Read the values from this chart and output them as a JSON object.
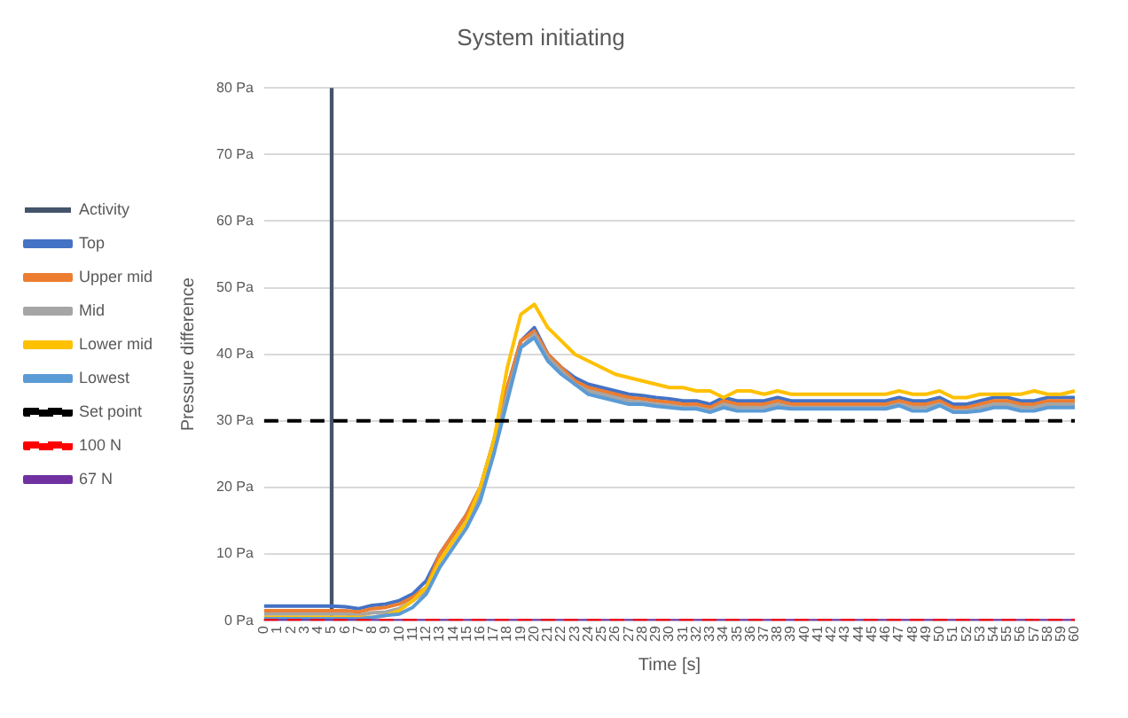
{
  "chart_data": {
    "type": "line",
    "title": "System initiating",
    "xlabel": "Time [s]",
    "ylabel": "Pressure difference",
    "categories": [
      "0",
      "1",
      "2",
      "3",
      "4",
      "5",
      "6",
      "7",
      "8",
      "9",
      "10",
      "11",
      "12",
      "13",
      "14",
      "15",
      "16",
      "17",
      "18",
      "19",
      "20",
      "21",
      "22",
      "23",
      "24",
      "25",
      "26",
      "27",
      "28",
      "29",
      "30",
      "31",
      "32",
      "33",
      "34",
      "35",
      "36",
      "37",
      "38",
      "39",
      "40",
      "41",
      "42",
      "43",
      "44",
      "45",
      "46",
      "47",
      "48",
      "49",
      "50",
      "51",
      "52",
      "53",
      "54",
      "55",
      "56",
      "57",
      "58",
      "59",
      "60"
    ],
    "ylim": [
      0,
      80
    ],
    "yticks": [
      {
        "value": 0,
        "label": "0 Pa"
      },
      {
        "value": 10,
        "label": "10 Pa"
      },
      {
        "value": 20,
        "label": "20 Pa"
      },
      {
        "value": 30,
        "label": "30 Pa"
      },
      {
        "value": 40,
        "label": "40 Pa"
      },
      {
        "value": 50,
        "label": "50 Pa"
      },
      {
        "value": 60,
        "label": "60 Pa"
      },
      {
        "value": 70,
        "label": "70 Pa"
      },
      {
        "value": 80,
        "label": "80 Pa"
      }
    ],
    "grid": "y",
    "legend": "left",
    "marker": "none",
    "series": [
      {
        "name": "Activity",
        "type": "bar",
        "color": "#44546a",
        "values": [
          null,
          null,
          null,
          null,
          null,
          80,
          null,
          null,
          null,
          null,
          null,
          null,
          null,
          null,
          null,
          null,
          null,
          null,
          null,
          null,
          null,
          null,
          null,
          null,
          null,
          null,
          null,
          null,
          null,
          null,
          null,
          null,
          null,
          null,
          null,
          null,
          null,
          null,
          null,
          null,
          null,
          null,
          null,
          null,
          null,
          null,
          null,
          null,
          null,
          null,
          null,
          null,
          null,
          null,
          null,
          null,
          null,
          null,
          null,
          null,
          null
        ]
      },
      {
        "name": "Top",
        "color": "#4472c4",
        "values": [
          2.2,
          2.2,
          2.2,
          2.2,
          2.2,
          2.2,
          2.1,
          1.8,
          2.3,
          2.5,
          3,
          4,
          6,
          10,
          13,
          16,
          20,
          27,
          35,
          42,
          44,
          40,
          38,
          36.5,
          35.5,
          35,
          34.5,
          34,
          33.8,
          33.5,
          33.3,
          33,
          33,
          32.5,
          33.5,
          33,
          33,
          33,
          33.5,
          33,
          33,
          33,
          33,
          33,
          33,
          33,
          33,
          33.5,
          33,
          33,
          33.5,
          32.5,
          32.5,
          33,
          33.5,
          33.5,
          33,
          33,
          33.5,
          33.5,
          33.5
        ]
      },
      {
        "name": "Upper mid",
        "color": "#ed7d31",
        "values": [
          1.5,
          1.5,
          1.5,
          1.5,
          1.5,
          1.5,
          1.5,
          1.3,
          1.8,
          2,
          2.5,
          3.5,
          5,
          10,
          13,
          16,
          20,
          27,
          35,
          42,
          43.5,
          40,
          38,
          36,
          35,
          34.5,
          34,
          33.5,
          33.3,
          33,
          32.8,
          32.5,
          32.5,
          32,
          33,
          32.5,
          32.5,
          32.5,
          33,
          32.5,
          32.5,
          32.5,
          32.5,
          32.5,
          32.5,
          32.5,
          32.5,
          33,
          32.5,
          32.5,
          33,
          32,
          32,
          32.5,
          33,
          33,
          32.5,
          32.5,
          33,
          33,
          33
        ]
      },
      {
        "name": "Mid",
        "color": "#a5a5a5",
        "values": [
          1,
          1,
          1,
          1,
          1,
          1,
          1,
          0.8,
          1.2,
          1.3,
          1.8,
          3,
          4.5,
          9,
          12,
          15,
          19,
          26,
          34,
          41,
          43,
          39.5,
          37.5,
          35.5,
          34.5,
          34,
          33.5,
          33,
          32.8,
          32.5,
          32.3,
          32,
          32,
          31.5,
          32.5,
          32,
          32,
          32,
          32.5,
          32,
          32,
          32,
          32,
          32,
          32,
          32,
          32,
          32.5,
          32,
          32,
          32.5,
          31.5,
          31.5,
          32,
          32.5,
          32.5,
          32,
          32,
          32.5,
          32.5,
          32.5
        ]
      },
      {
        "name": "Lower mid",
        "color": "#ffc000",
        "values": [
          0.5,
          0.5,
          0.5,
          0.5,
          0.5,
          0.5,
          0.5,
          0.5,
          0.5,
          0.8,
          1.5,
          3,
          5,
          9,
          12,
          15,
          20,
          27,
          38,
          46,
          47.5,
          44,
          42,
          40,
          39,
          38,
          37,
          36.5,
          36,
          35.5,
          35,
          35,
          34.5,
          34.5,
          33.5,
          34.5,
          34.5,
          34,
          34.5,
          34,
          34,
          34,
          34,
          34,
          34,
          34,
          34,
          34.5,
          34,
          34,
          34.5,
          33.5,
          33.5,
          34,
          34,
          34,
          34,
          34.5,
          34,
          34,
          34.5
        ]
      },
      {
        "name": "Lowest",
        "color": "#5b9bd5",
        "values": [
          0.3,
          0.3,
          0.3,
          0.3,
          0.3,
          0.3,
          0.3,
          0.3,
          0.5,
          0.8,
          1,
          2,
          4,
          8,
          11,
          14,
          18,
          25,
          33,
          41,
          42.5,
          39,
          37,
          35.5,
          34,
          33.5,
          33,
          32.5,
          32.5,
          32.2,
          32,
          31.8,
          31.8,
          31.3,
          32,
          31.5,
          31.5,
          31.5,
          32,
          31.8,
          31.8,
          31.8,
          31.8,
          31.8,
          31.8,
          31.8,
          31.8,
          32.3,
          31.5,
          31.5,
          32.3,
          31.3,
          31.3,
          31.5,
          32,
          32,
          31.5,
          31.5,
          32,
          32,
          32
        ]
      },
      {
        "name": "Set point",
        "color": "#000000",
        "line_style": "dashed",
        "values": [
          30,
          30,
          30,
          30,
          30,
          30,
          30,
          30,
          30,
          30,
          30,
          30,
          30,
          30,
          30,
          30,
          30,
          30,
          30,
          30,
          30,
          30,
          30,
          30,
          30,
          30,
          30,
          30,
          30,
          30,
          30,
          30,
          30,
          30,
          30,
          30,
          30,
          30,
          30,
          30,
          30,
          30,
          30,
          30,
          30,
          30,
          30,
          30,
          30,
          30,
          30,
          30,
          30,
          30,
          30,
          30,
          30,
          30,
          30,
          30,
          30
        ]
      },
      {
        "name": "100 N",
        "color": "#ff0000",
        "line_style": "dashed",
        "values": [
          0,
          0,
          0,
          0,
          0,
          0,
          0,
          0,
          0,
          0,
          0,
          0,
          0,
          0,
          0,
          0,
          0,
          0,
          0,
          0,
          0,
          0,
          0,
          0,
          0,
          0,
          0,
          0,
          0,
          0,
          0,
          0,
          0,
          0,
          0,
          0,
          0,
          0,
          0,
          0,
          0,
          0,
          0,
          0,
          0,
          0,
          0,
          0,
          0,
          0,
          0,
          0,
          0,
          0,
          0,
          0,
          0,
          0,
          0,
          0,
          0
        ]
      },
      {
        "name": "67 N",
        "color": "#7030a0",
        "values": [
          0,
          0,
          0,
          0,
          0,
          0,
          0,
          0,
          0,
          0,
          0,
          0,
          0,
          0,
          0,
          0,
          0,
          0,
          0,
          0,
          0,
          0,
          0,
          0,
          0,
          0,
          0,
          0,
          0,
          0,
          0,
          0,
          0,
          0,
          0,
          0,
          0,
          0,
          0,
          0,
          0,
          0,
          0,
          0,
          0,
          0,
          0,
          0,
          0,
          0,
          0,
          0,
          0,
          0,
          0,
          0,
          0,
          0,
          0,
          0,
          0
        ]
      }
    ]
  }
}
